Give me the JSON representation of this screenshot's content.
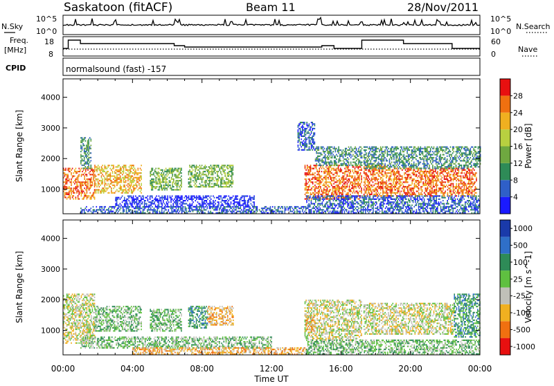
{
  "header": {
    "station": "Saskatoon (fitACF)",
    "beam": "Beam 11",
    "date": "28/Nov/2011"
  },
  "top_panels": {
    "nsky_label": "N.Sky",
    "nsky_ticks": [
      "10^5",
      "10^0"
    ],
    "nsearch_label": "N.Search",
    "nsearch_ticks": [
      "10^5",
      "10^0"
    ],
    "freq_label_1": "Freq.",
    "freq_label_2": "[MHz]",
    "freq_ticks": [
      "18",
      "8"
    ],
    "nave_label": "Nave",
    "nave_ticks": [
      "60",
      "0"
    ],
    "cpid_label": "CPID",
    "cpid_value": "normalsound (fast) -157"
  },
  "chart_data": [
    {
      "type": "heatmap",
      "panel": "power",
      "ylabel": "Slant Range [km]",
      "xlabel": "Time UT",
      "x_ticks": [
        "00:00",
        "04:00",
        "08:00",
        "12:00",
        "16:00",
        "20:00",
        "00:00"
      ],
      "xlim_hours": [
        0,
        24
      ],
      "ylim_km": [
        200,
        4600
      ],
      "y_ticks": [
        "1000",
        "2000",
        "3000",
        "4000"
      ],
      "colorbar_label": "Power [dB]",
      "colorbar_ticks": [
        "4",
        "8",
        "12",
        "16",
        "20",
        "24",
        "28"
      ],
      "colorbar_colors": [
        "#1a1aff",
        "#2f5fc8",
        "#2e8b57",
        "#6fa840",
        "#b8d040",
        "#f0b020",
        "#f07010",
        "#e81010"
      ],
      "regions": [
        {
          "t": [
            0.0,
            1.8
          ],
          "r": [
            700,
            1700
          ],
          "level": 6
        },
        {
          "t": [
            1.0,
            1.6
          ],
          "r": [
            1700,
            2700
          ],
          "level": 2
        },
        {
          "t": [
            1.8,
            4.5
          ],
          "r": [
            900,
            1800
          ],
          "level": 5
        },
        {
          "t": [
            5.0,
            6.8
          ],
          "r": [
            1000,
            1700
          ],
          "level": 3
        },
        {
          "t": [
            7.2,
            9.8
          ],
          "r": [
            1100,
            1800
          ],
          "level": 3
        },
        {
          "t": [
            3.0,
            11.0
          ],
          "r": [
            450,
            800
          ],
          "level": 0
        },
        {
          "t": [
            1.0,
            14.0
          ],
          "r": [
            250,
            450
          ],
          "level": 1
        },
        {
          "t": [
            13.9,
            17.2
          ],
          "r": [
            700,
            1800
          ],
          "level": 6
        },
        {
          "t": [
            14.5,
            17.2
          ],
          "r": [
            1800,
            2400
          ],
          "level": 2
        },
        {
          "t": [
            13.5,
            14.5
          ],
          "r": [
            2300,
            3200
          ],
          "level": 1
        },
        {
          "t": [
            17.3,
            18.6
          ],
          "r": [
            800,
            1800
          ],
          "level": 6
        },
        {
          "t": [
            18.6,
            23.8
          ],
          "r": [
            800,
            1700
          ],
          "level": 6
        },
        {
          "t": [
            17.3,
            24.0
          ],
          "r": [
            1700,
            2400
          ],
          "level": 2
        },
        {
          "t": [
            14.0,
            24.0
          ],
          "r": [
            250,
            800
          ],
          "level": 1
        }
      ]
    },
    {
      "type": "heatmap",
      "panel": "velocity",
      "ylabel": "Slant Range [km]",
      "xlabel": "Time UT",
      "x_ticks": [
        "00:00",
        "04:00",
        "08:00",
        "12:00",
        "16:00",
        "20:00",
        "00:00"
      ],
      "xlim_hours": [
        0,
        24
      ],
      "ylim_km": [
        200,
        4600
      ],
      "y_ticks": [
        "1000",
        "2000",
        "3000",
        "4000"
      ],
      "colorbar_label": "Velocity [m s^-1]",
      "colorbar_ticks": [
        "1000",
        "500",
        "100",
        "25",
        "-25",
        "-100",
        "-500",
        "-1000"
      ],
      "colorbar_colors": [
        "#1a3aaa",
        "#2f6fc8",
        "#2e8b57",
        "#5fc040",
        "#c0c0b8",
        "#f0b020",
        "#f07010",
        "#e81010"
      ],
      "regions": [
        {
          "t": [
            0.0,
            1.8
          ],
          "r": [
            600,
            2200
          ],
          "level": 4
        },
        {
          "t": [
            1.8,
            4.5
          ],
          "r": [
            1000,
            1800
          ],
          "level": 3
        },
        {
          "t": [
            5.0,
            6.8
          ],
          "r": [
            1000,
            1700
          ],
          "level": 3
        },
        {
          "t": [
            7.2,
            8.3
          ],
          "r": [
            1100,
            1800
          ],
          "level": 2
        },
        {
          "t": [
            8.3,
            9.8
          ],
          "r": [
            1200,
            1800
          ],
          "level": 5
        },
        {
          "t": [
            1.0,
            12.0
          ],
          "r": [
            450,
            800
          ],
          "level": 3
        },
        {
          "t": [
            4.0,
            14.0
          ],
          "r": [
            250,
            450
          ],
          "level": 5
        },
        {
          "t": [
            13.9,
            17.2
          ],
          "r": [
            700,
            2000
          ],
          "level": 4
        },
        {
          "t": [
            13.9,
            14.5
          ],
          "r": [
            1000,
            1600
          ],
          "level": 5
        },
        {
          "t": [
            17.3,
            22.5
          ],
          "r": [
            900,
            1900
          ],
          "level": 4
        },
        {
          "t": [
            22.5,
            24.0
          ],
          "r": [
            800,
            2200
          ],
          "level": 2
        },
        {
          "t": [
            14.0,
            24.0
          ],
          "r": [
            250,
            700
          ],
          "level": 3
        }
      ]
    }
  ]
}
